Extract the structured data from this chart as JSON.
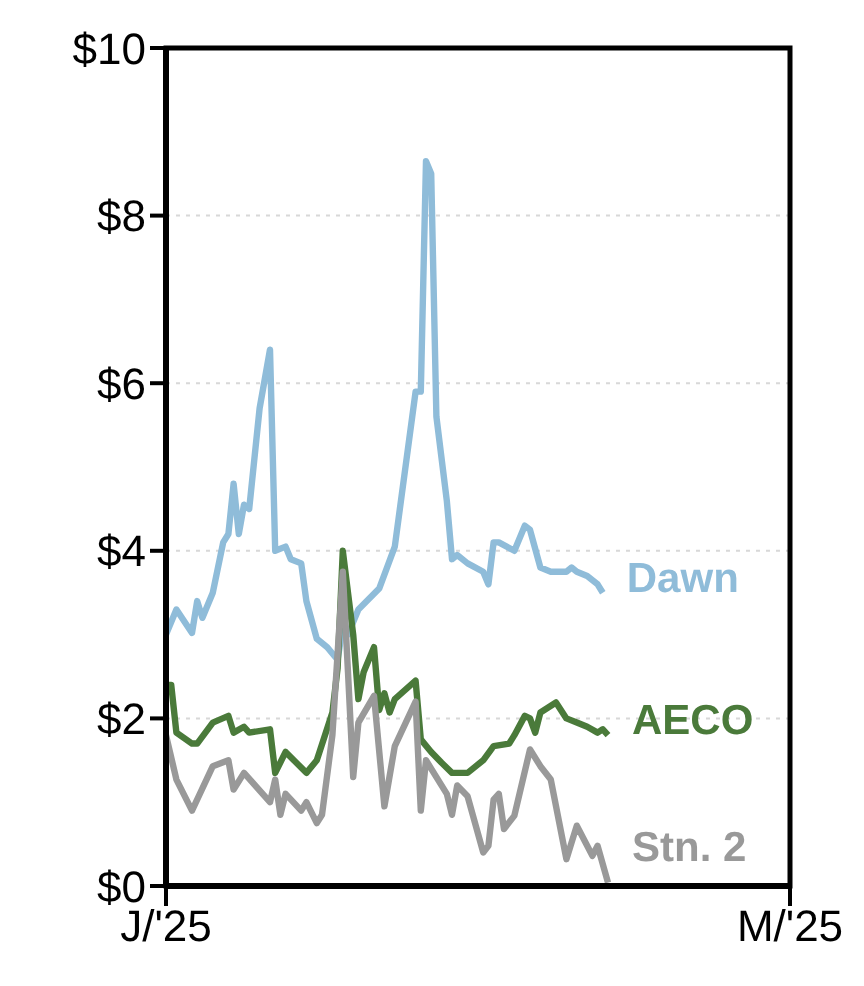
{
  "chart_data": {
    "type": "line",
    "xlim": [
      "2025-01-01",
      "2025-05-01"
    ],
    "xticks": [
      {
        "value": "2025-01-01",
        "label": "J/'25"
      },
      {
        "value": "2025-05-01",
        "label": "M/'25"
      }
    ],
    "ylim": [
      0,
      10
    ],
    "yticks": [
      {
        "value": 0,
        "label": "$0"
      },
      {
        "value": 2,
        "label": "$2"
      },
      {
        "value": 4,
        "label": "$4"
      },
      {
        "value": 6,
        "label": "$6"
      },
      {
        "value": 8,
        "label": "$8"
      },
      {
        "value": 10,
        "label": "$10"
      }
    ],
    "grid": "y",
    "marker": "none",
    "line_style": "solid",
    "series": [
      {
        "name": "Dawn",
        "color": "#8fbcd9",
        "x": [
          "2025-01-01",
          "2025-01-03",
          "2025-01-06",
          "2025-01-07",
          "2025-01-08",
          "2025-01-10",
          "2025-01-12",
          "2025-01-13",
          "2025-01-14",
          "2025-01-15",
          "2025-01-16",
          "2025-01-17",
          "2025-01-19",
          "2025-01-21",
          "2025-01-22",
          "2025-01-24",
          "2025-01-25",
          "2025-01-27",
          "2025-01-28",
          "2025-01-30",
          "2025-02-01",
          "2025-02-03",
          "2025-02-04",
          "2025-02-05",
          "2025-02-07",
          "2025-02-11",
          "2025-02-14",
          "2025-02-18",
          "2025-02-19",
          "2025-02-20",
          "2025-02-21",
          "2025-02-22",
          "2025-02-24",
          "2025-02-25",
          "2025-02-26",
          "2025-02-28",
          "2025-03-03",
          "2025-03-04",
          "2025-03-05",
          "2025-03-06",
          "2025-03-09",
          "2025-03-11",
          "2025-03-12",
          "2025-03-14",
          "2025-03-16",
          "2025-03-19",
          "2025-03-20",
          "2025-03-21",
          "2025-03-23",
          "2025-03-25",
          "2025-03-26"
        ],
        "values": [
          3.0,
          3.3,
          3.02,
          3.4,
          3.2,
          3.5,
          4.1,
          4.2,
          4.8,
          4.2,
          4.55,
          4.5,
          5.7,
          6.4,
          4.0,
          4.05,
          3.9,
          3.85,
          3.4,
          2.95,
          2.85,
          2.7,
          3.1,
          3.0,
          3.3,
          3.55,
          4.05,
          5.9,
          5.9,
          8.65,
          8.5,
          5.6,
          4.6,
          3.9,
          3.95,
          3.85,
          3.75,
          3.6,
          4.1,
          4.1,
          4.0,
          4.3,
          4.25,
          3.8,
          3.75,
          3.75,
          3.8,
          3.75,
          3.7,
          3.6,
          3.5
        ]
      },
      {
        "name": "AECO",
        "color": "#4a7a3a",
        "x": [
          "2025-01-01",
          "2025-01-02",
          "2025-01-03",
          "2025-01-06",
          "2025-01-07",
          "2025-01-10",
          "2025-01-13",
          "2025-01-14",
          "2025-01-16",
          "2025-01-17",
          "2025-01-21",
          "2025-01-22",
          "2025-01-24",
          "2025-01-28",
          "2025-01-30",
          "2025-02-02",
          "2025-02-03",
          "2025-02-04",
          "2025-02-06",
          "2025-02-07",
          "2025-02-08",
          "2025-02-10",
          "2025-02-11",
          "2025-02-12",
          "2025-02-13",
          "2025-02-14",
          "2025-02-18",
          "2025-02-19",
          "2025-02-21",
          "2025-02-23",
          "2025-02-25",
          "2025-02-28",
          "2025-03-03",
          "2025-03-05",
          "2025-03-08",
          "2025-03-09",
          "2025-03-11",
          "2025-03-12",
          "2025-03-13",
          "2025-03-14",
          "2025-03-17",
          "2025-03-19",
          "2025-03-21",
          "2025-03-23",
          "2025-03-25",
          "2025-03-26",
          "2025-03-27"
        ],
        "values": [
          2.4,
          2.4,
          1.83,
          1.7,
          1.7,
          1.95,
          2.03,
          1.83,
          1.9,
          1.83,
          1.87,
          1.35,
          1.6,
          1.35,
          1.5,
          2.07,
          2.6,
          4.0,
          3.0,
          2.23,
          2.55,
          2.85,
          2.1,
          2.3,
          2.07,
          2.23,
          2.45,
          1.75,
          1.6,
          1.47,
          1.35,
          1.35,
          1.5,
          1.67,
          1.7,
          1.8,
          2.03,
          2.0,
          1.83,
          2.07,
          2.19,
          2.0,
          1.95,
          1.9,
          1.83,
          1.87,
          1.8
        ]
      },
      {
        "name": "Stn. 2",
        "color": "#999999",
        "x": [
          "2025-01-01",
          "2025-01-03",
          "2025-01-06",
          "2025-01-10",
          "2025-01-13",
          "2025-01-14",
          "2025-01-16",
          "2025-01-21",
          "2025-01-22",
          "2025-01-23",
          "2025-01-24",
          "2025-01-27",
          "2025-01-28",
          "2025-01-30",
          "2025-01-31",
          "2025-02-02",
          "2025-02-04",
          "2025-02-05",
          "2025-02-06",
          "2025-02-07",
          "2025-02-10",
          "2025-02-12",
          "2025-02-14",
          "2025-02-18",
          "2025-02-19",
          "2025-02-20",
          "2025-02-24",
          "2025-02-25",
          "2025-02-26",
          "2025-02-28",
          "2025-03-03",
          "2025-03-04",
          "2025-03-05",
          "2025-03-06",
          "2025-03-07",
          "2025-03-09",
          "2025-03-12",
          "2025-03-14",
          "2025-03-16",
          "2025-03-19",
          "2025-03-21",
          "2025-03-24",
          "2025-03-25",
          "2025-03-27"
        ],
        "values": [
          1.8,
          1.27,
          0.9,
          1.43,
          1.5,
          1.15,
          1.35,
          1.0,
          1.27,
          0.85,
          1.1,
          0.9,
          1.0,
          0.75,
          0.85,
          1.8,
          3.75,
          2.55,
          1.3,
          1.95,
          2.27,
          0.95,
          1.67,
          2.2,
          0.9,
          1.5,
          1.1,
          0.85,
          1.2,
          1.07,
          0.4,
          0.48,
          1.03,
          1.1,
          0.68,
          0.84,
          1.63,
          1.43,
          1.27,
          0.32,
          0.72,
          0.36,
          0.48,
          0.04
        ]
      }
    ]
  }
}
